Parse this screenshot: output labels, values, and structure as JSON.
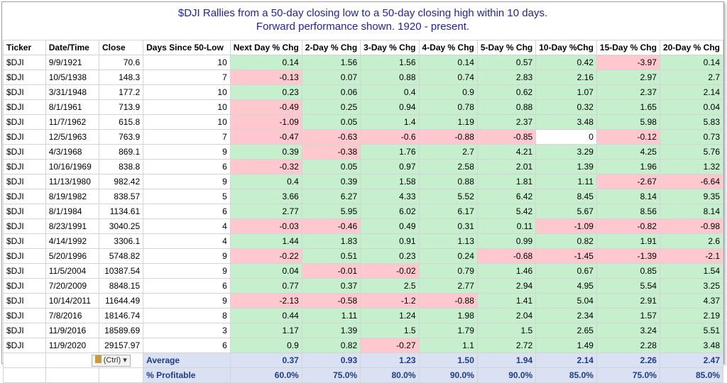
{
  "title": {
    "line1": "$DJI Rallies from a 50-day closing low to a 50-day closing high within 10 days.",
    "line2": "Forward performance shown. 1920 - present."
  },
  "headers": [
    "Ticker",
    "Date/Time",
    "Close",
    "Days Since 50-Low",
    "Next Day % Chg",
    "2-Day % Chg",
    "3-Day % Chg",
    "4-Day % Chg",
    "5-Day % Chg",
    "10-Day %Chg",
    "15-Day % Chg",
    "20-Day % Chg"
  ],
  "rows": [
    [
      "$DJI",
      "9/9/1921",
      "70.6",
      "10",
      "0.14",
      "1.56",
      "1.56",
      "0.14",
      "0.57",
      "0.42",
      "-3.97",
      "0.14"
    ],
    [
      "$DJI",
      "10/5/1938",
      "148.3",
      "7",
      "-0.13",
      "0.07",
      "0.88",
      "0.74",
      "2.83",
      "2.16",
      "2.97",
      "2.7"
    ],
    [
      "$DJI",
      "3/31/1948",
      "177.2",
      "10",
      "0.23",
      "0.06",
      "0.4",
      "0.9",
      "0.62",
      "1.07",
      "2.37",
      "2.14"
    ],
    [
      "$DJI",
      "8/1/1961",
      "713.9",
      "10",
      "-0.49",
      "0.25",
      "0.94",
      "0.78",
      "0.88",
      "0.32",
      "1.65",
      "0.04"
    ],
    [
      "$DJI",
      "11/7/1962",
      "615.8",
      "10",
      "-1.09",
      "0.05",
      "1.4",
      "1.19",
      "2.37",
      "3.48",
      "5.98",
      "5.83"
    ],
    [
      "$DJI",
      "12/5/1963",
      "763.9",
      "7",
      "-0.47",
      "-0.63",
      "-0.6",
      "-0.88",
      "-0.85",
      "0",
      "-0.12",
      "0.73"
    ],
    [
      "$DJI",
      "4/3/1968",
      "869.1",
      "9",
      "0.39",
      "-0.38",
      "1.76",
      "2.7",
      "4.21",
      "3.29",
      "4.25",
      "5.76"
    ],
    [
      "$DJI",
      "10/16/1969",
      "838.8",
      "6",
      "-0.32",
      "0.05",
      "0.97",
      "2.58",
      "2.01",
      "1.39",
      "1.96",
      "1.32"
    ],
    [
      "$DJI",
      "11/13/1980",
      "982.42",
      "9",
      "0.4",
      "0.39",
      "1.58",
      "0.88",
      "1.81",
      "1.11",
      "-2.67",
      "-6.64"
    ],
    [
      "$DJI",
      "8/19/1982",
      "838.57",
      "5",
      "3.66",
      "6.27",
      "4.33",
      "5.52",
      "6.42",
      "8.45",
      "8.14",
      "9.35"
    ],
    [
      "$DJI",
      "8/1/1984",
      "1134.61",
      "6",
      "2.77",
      "5.95",
      "6.02",
      "6.17",
      "5.42",
      "5.67",
      "8.56",
      "8.14"
    ],
    [
      "$DJI",
      "8/23/1991",
      "3040.25",
      "4",
      "-0.03",
      "-0.46",
      "0.49",
      "0.31",
      "0.11",
      "-1.09",
      "-0.82",
      "-0.98"
    ],
    [
      "$DJI",
      "4/14/1992",
      "3306.1",
      "4",
      "1.44",
      "1.83",
      "0.91",
      "1.13",
      "0.99",
      "0.82",
      "1.91",
      "2.6"
    ],
    [
      "$DJI",
      "5/20/1996",
      "5748.82",
      "9",
      "-0.22",
      "0.51",
      "0.23",
      "0.24",
      "-0.68",
      "-1.45",
      "-1.39",
      "-2.1"
    ],
    [
      "$DJI",
      "11/5/2004",
      "10387.54",
      "9",
      "0.04",
      "-0.01",
      "-0.02",
      "0.79",
      "1.46",
      "0.67",
      "0.85",
      "1.54"
    ],
    [
      "$DJI",
      "7/20/2009",
      "8848.15",
      "6",
      "0.77",
      "0.37",
      "2.5",
      "2.77",
      "2.94",
      "4.95",
      "5.54",
      "3.25"
    ],
    [
      "$DJI",
      "10/14/2011",
      "11644.49",
      "9",
      "-2.13",
      "-0.58",
      "-1.2",
      "-0.88",
      "1.41",
      "5.04",
      "2.91",
      "4.37"
    ],
    [
      "$DJI",
      "7/8/2016",
      "18146.74",
      "8",
      "0.44",
      "1.11",
      "1.24",
      "1.98",
      "2.04",
      "2.34",
      "1.57",
      "2.19"
    ],
    [
      "$DJI",
      "11/9/2016",
      "18589.69",
      "3",
      "1.17",
      "1.39",
      "1.5",
      "1.79",
      "1.5",
      "2.65",
      "3.24",
      "5.51"
    ],
    [
      "$DJI",
      "11/9/2020",
      "29157.97",
      "6",
      "0.9",
      "0.82",
      "-0.27",
      "1.1",
      "2.72",
      "1.49",
      "2.28",
      "3.48"
    ]
  ],
  "average": {
    "label": "Average",
    "values": [
      "0.37",
      "0.93",
      "1.23",
      "1.50",
      "1.94",
      "2.14",
      "2.26",
      "2.47"
    ]
  },
  "profitable": {
    "label": "% Profitable",
    "values": [
      "60.0%",
      "75.0%",
      "80.0%",
      "90.0%",
      "90.0%",
      "85.0%",
      "75.0%",
      "85.0%"
    ]
  },
  "paste_options": {
    "label": "(Ctrl)",
    "icon": "clipboard-icon"
  },
  "colors": {
    "positive_fill": "#c6efce",
    "negative_fill": "#ffc7ce",
    "negative_text": "#9c0006",
    "footer_fill": "#d9e1f2",
    "title_text": "#1f1fb0"
  }
}
